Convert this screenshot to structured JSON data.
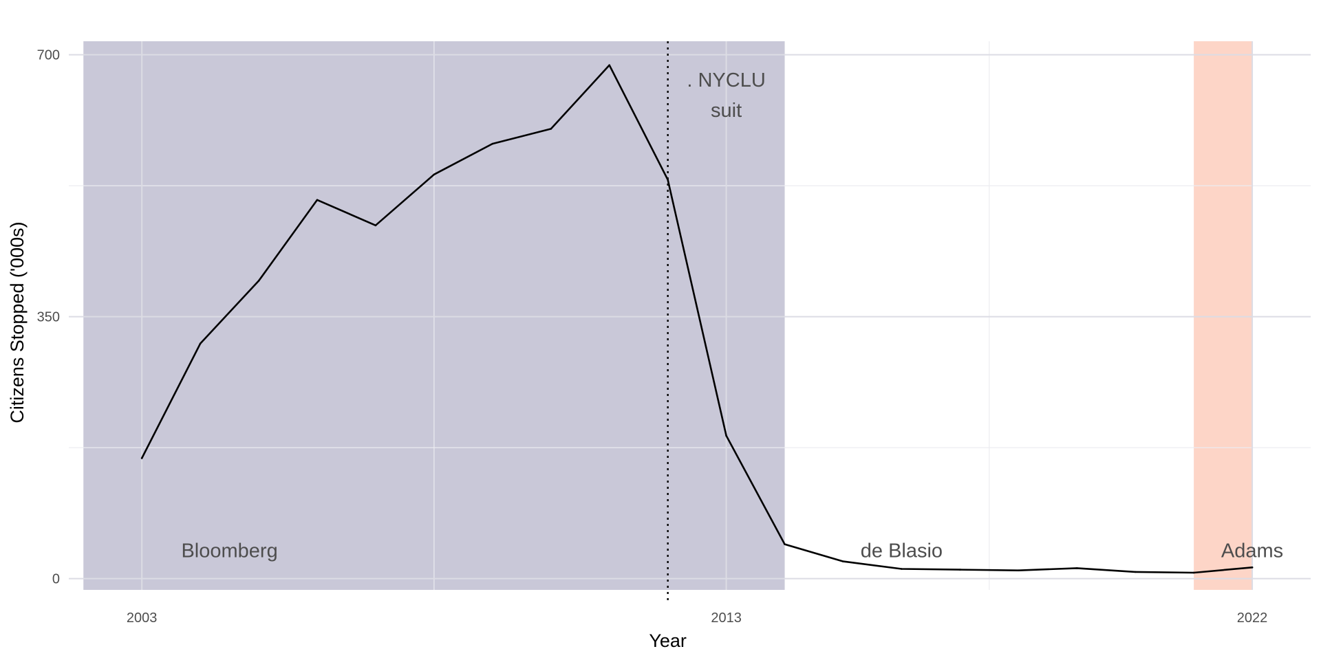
{
  "chart_data": {
    "type": "line",
    "title": "",
    "xlabel": "Year",
    "ylabel": "Citizens Stopped ('000s)",
    "xlim": [
      2001.75,
      2023.0
    ],
    "ylim": [
      -15,
      718
    ],
    "grid": true,
    "x_ticks": [
      2003,
      2013,
      2022
    ],
    "x_tick_labels": [
      "2003",
      "2013",
      "2022"
    ],
    "x_minor_ticks": [
      2008,
      2017.5
    ],
    "y_ticks": [
      0,
      350,
      700
    ],
    "y_tick_labels": [
      "0",
      "350",
      "700"
    ],
    "y_minor_ticks": [
      175,
      525
    ],
    "series": [
      {
        "x": [
          2003,
          2004,
          2005,
          2006,
          2007,
          2008,
          2009,
          2010,
          2011,
          2012,
          2013,
          2014,
          2015,
          2016,
          2017,
          2018,
          2019,
          2020,
          2021,
          2022
        ],
        "values": [
          161,
          314,
          398,
          506,
          472,
          540,
          581,
          601,
          686,
          533,
          191,
          46,
          23,
          13,
          12,
          11,
          14,
          9,
          8,
          15
        ],
        "color": "#000000"
      }
    ],
    "eras": [
      {
        "label": "Bloomberg",
        "start": 2002,
        "end": 2014,
        "color": "#c9c8d8",
        "label_x": 2004.5
      },
      {
        "label": "de Blasio",
        "start": 2014,
        "end": 2021,
        "color": "#ffffff",
        "label_x": 2016.0
      },
      {
        "label": "Adams",
        "start": 2021,
        "end": 2022,
        "color": "#fdd5c7",
        "label_x": 2022.0
      }
    ],
    "era_label_y": 38,
    "vline": {
      "x": 2012,
      "style": "dotted",
      "label_lines": [
        ". NYCLU",
        "suit"
      ],
      "label_x": 2013.0
    }
  }
}
